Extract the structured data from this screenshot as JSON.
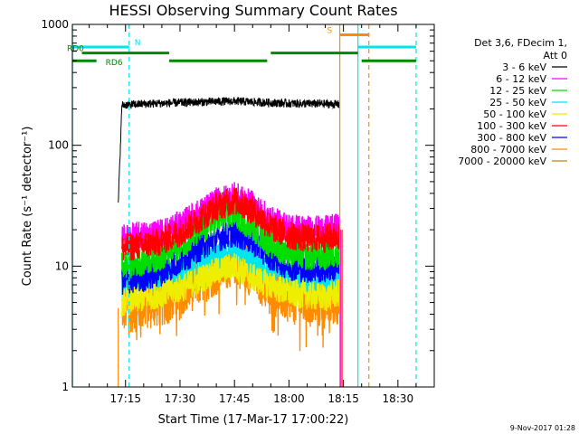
{
  "chart_data": {
    "type": "line",
    "title": "HESSI Observing Summary Count Rates",
    "xlabel": "Start Time (17-Mar-17 17:00:22)",
    "ylabel": "Count Rate (s⁻¹ detector⁻¹)",
    "yscale": "log",
    "ylim": [
      1,
      1000
    ],
    "xlim": [
      "17:00:22",
      "18:40:00"
    ],
    "x_ticks": [
      "17:15",
      "17:30",
      "17:45",
      "18:00",
      "18:15",
      "18:30"
    ],
    "y_ticks": [
      "1",
      "10",
      "100",
      "1000"
    ],
    "legend_position": "right",
    "legend_header": [
      "Det 3,6, FDecim 1,",
      "Att 0"
    ],
    "series": [
      {
        "name": "3 - 6 keV",
        "color": "#000000",
        "x": [
          "17:13",
          "17:14",
          "17:20",
          "17:30",
          "17:40",
          "17:45",
          "17:50",
          "18:00",
          "18:10",
          "18:14"
        ],
        "values": [
          33,
          215,
          220,
          225,
          230,
          232,
          228,
          222,
          220,
          218
        ]
      },
      {
        "name": "6 - 12 keV",
        "color": "#ff00ff",
        "x": [
          "17:14",
          "17:20",
          "17:25",
          "17:30",
          "17:35",
          "17:40",
          "17:45",
          "17:50",
          "17:55",
          "18:00",
          "18:05",
          "18:10",
          "18:14"
        ],
        "values": [
          17,
          18,
          19,
          22,
          27,
          34,
          38,
          32,
          24,
          21,
          20,
          20,
          21
        ]
      },
      {
        "name": "12 - 25 keV",
        "color": "#00dd00",
        "x": [
          "17:14",
          "17:20",
          "17:25",
          "17:30",
          "17:35",
          "17:40",
          "17:45",
          "17:50",
          "17:55",
          "18:00",
          "18:05",
          "18:10",
          "18:14"
        ],
        "values": [
          10,
          11,
          12,
          15,
          19,
          24,
          27,
          21,
          15,
          13,
          12,
          12,
          13
        ]
      },
      {
        "name": "25 - 50 keV",
        "color": "#00e5ee",
        "x": [
          "17:14",
          "17:20",
          "17:30",
          "17:40",
          "17:45",
          "17:50",
          "17:55",
          "18:00",
          "18:10",
          "18:14"
        ],
        "values": [
          7,
          7.5,
          9,
          12,
          14,
          11,
          8,
          7.5,
          7,
          7.5
        ]
      },
      {
        "name": "50 - 100 keV",
        "color": "#eeee00",
        "x": [
          "17:14",
          "17:20",
          "17:30",
          "17:40",
          "17:45",
          "17:50",
          "18:00",
          "18:10",
          "18:14"
        ],
        "values": [
          5,
          5.5,
          6.5,
          9,
          10,
          8,
          6,
          5.5,
          6
        ]
      },
      {
        "name": "100 - 300 keV",
        "color": "#ff0000",
        "x": [
          "17:14",
          "17:20",
          "17:25",
          "17:30",
          "17:35",
          "17:40",
          "17:45",
          "17:50",
          "17:55",
          "18:00",
          "18:05",
          "18:10",
          "18:14"
        ],
        "values": [
          14,
          15,
          16,
          19,
          24,
          31,
          35,
          29,
          21,
          18,
          17,
          17,
          18
        ]
      },
      {
        "name": "300 - 800 keV",
        "color": "#0000ff",
        "x": [
          "17:14",
          "17:20",
          "17:25",
          "17:30",
          "17:35",
          "17:40",
          "17:45",
          "17:50",
          "17:55",
          "18:00",
          "18:05",
          "18:10",
          "18:14"
        ],
        "values": [
          7.5,
          8,
          9,
          11,
          14,
          17,
          19,
          16,
          12,
          10,
          9.5,
          9.5,
          10
        ]
      },
      {
        "name": "800 - 7000 keV",
        "color": "#ff8c00",
        "x": [
          "17:14",
          "17:20",
          "17:25",
          "17:30",
          "17:35",
          "17:40",
          "17:45",
          "17:50",
          "17:55",
          "18:00",
          "18:05",
          "18:10",
          "18:14"
        ],
        "values": [
          4.5,
          4.8,
          5.2,
          6,
          7.5,
          9.5,
          11.5,
          9,
          6.5,
          5.5,
          5,
          5,
          5.5
        ]
      },
      {
        "name": "7000 - 20000 keV",
        "color": "#b8860b",
        "x": [],
        "values": []
      }
    ],
    "flags": [
      {
        "label": "N",
        "color": "#00e5ee",
        "y": 650,
        "segments": [
          [
            "17:00:22",
            "17:16"
          ],
          [
            "18:19",
            "18:35"
          ]
        ],
        "label_at": "17:17"
      },
      {
        "label": "RD0",
        "color": "#008800",
        "y": 580,
        "segments": [
          [
            "17:03",
            "17:27"
          ],
          [
            "17:55",
            "18:19"
          ]
        ],
        "label_at": "17:00:22"
      },
      {
        "label": "RD6",
        "color": "#008800",
        "y": 500,
        "segments": [
          [
            "17:00:22",
            "17:07"
          ],
          [
            "17:27",
            "17:54"
          ],
          [
            "18:20",
            "18:35"
          ]
        ],
        "label_at": "17:09"
      },
      {
        "label": "S",
        "color": "#ff8c00",
        "y": 820,
        "segments": [
          [
            "18:14",
            "18:22"
          ]
        ],
        "label_at": "18:10"
      }
    ],
    "vlines": [
      {
        "x": "17:00:22",
        "color": "#00e5ee",
        "style": "solid"
      },
      {
        "x": "17:16",
        "color": "#00e5ee",
        "style": "dashed"
      },
      {
        "x": "18:19",
        "color": "#00e5ee",
        "style": "solid"
      },
      {
        "x": "18:35",
        "color": "#00e5ee",
        "style": "dashed"
      },
      {
        "x": "18:14",
        "color": "#ff8c00",
        "style": "solid"
      },
      {
        "x": "18:22",
        "color": "#ff8c00",
        "style": "dashed"
      },
      {
        "x": "17:13",
        "color": "#ff8c00",
        "style": "solid"
      }
    ],
    "footer": "9-Nov-2017 01:28"
  }
}
